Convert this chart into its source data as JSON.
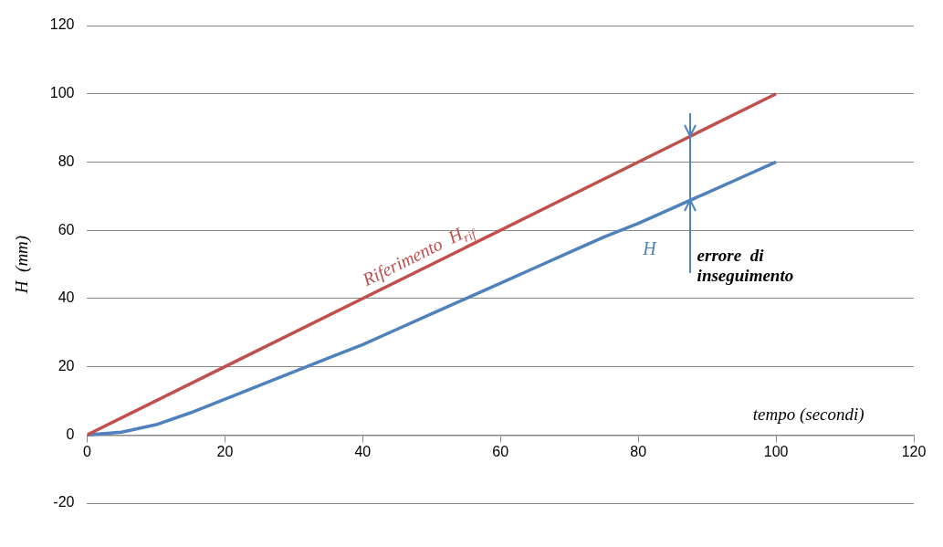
{
  "chart_data": {
    "type": "line",
    "xlabel": "tempo (secondi)",
    "ylabel": "H  (mm)",
    "x": [
      0,
      5,
      10,
      15,
      20,
      25,
      30,
      35,
      40,
      45,
      50,
      55,
      60,
      65,
      70,
      75,
      80,
      85,
      90,
      95,
      100
    ],
    "series": [
      {
        "name": "Riferimento  H$_{rif}$",
        "color": "#c0504d",
        "x": [
          0,
          100
        ],
        "values": [
          0,
          100
        ]
      },
      {
        "name": "H",
        "color": "#4f81bd",
        "values": [
          0,
          0.8,
          3,
          6.5,
          10.5,
          14.5,
          18.5,
          22.5,
          26.5,
          31,
          35.5,
          40,
          44.5,
          49,
          53.5,
          58,
          62,
          66.5,
          71,
          75.5,
          80
        ]
      }
    ],
    "annotations": [
      "errore  di inseguimento"
    ],
    "xlim": [
      0,
      120
    ],
    "xticks": [
      0,
      20,
      40,
      60,
      80,
      100,
      120
    ],
    "ylim": [
      -20,
      120
    ],
    "yticks": [
      -20,
      0,
      20,
      40,
      60,
      80,
      100,
      120
    ],
    "grid": "y",
    "legend": false,
    "marker": "none",
    "line_style": "solid"
  }
}
